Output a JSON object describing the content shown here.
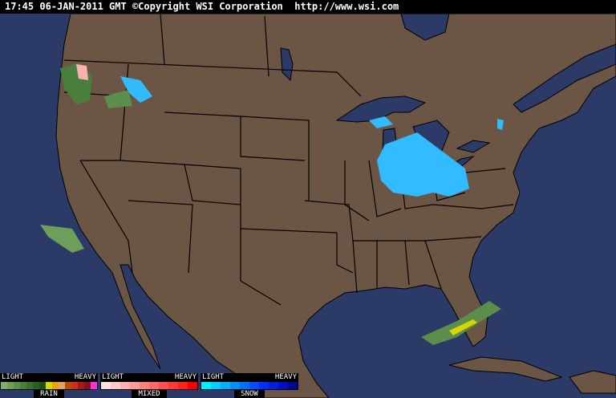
{
  "header": {
    "text": "17:45 06-JAN-2011 GMT ©Copyright WSI Corporation  http://www.wsi.com"
  },
  "colors": {
    "ocean": "#2b3a66",
    "land": "#6b5545",
    "borders": "#000000"
  },
  "legend": [
    {
      "name": "RAIN",
      "light": "LIGHT",
      "heavy": "HEAVY",
      "colors": [
        "#7fae6a",
        "#6d9e5a",
        "#5b8e4a",
        "#4a7e3c",
        "#3a6e2e",
        "#2c5e22",
        "#1f4e18",
        "#d6d600",
        "#f0a000",
        "#e0a070",
        "#b85000",
        "#c83020",
        "#a81818",
        "#881020",
        "#ff30e0"
      ]
    },
    {
      "name": "MIXED",
      "light": "LIGHT",
      "heavy": "HEAVY",
      "colors": [
        "#ffe0e0",
        "#ffc8c8",
        "#ffb0b0",
        "#ff9898",
        "#ff8080",
        "#ff6868",
        "#ff5050",
        "#ff3838",
        "#ff2020",
        "#ff0000"
      ]
    },
    {
      "name": "SNOW",
      "light": "LIGHT",
      "heavy": "HEAVY",
      "colors": [
        "#00f0ff",
        "#00d0ff",
        "#00b0ff",
        "#0090ff",
        "#0070ff",
        "#0050ff",
        "#0030ff",
        "#0020e0",
        "#0010c0",
        "#000890"
      ]
    }
  ]
}
